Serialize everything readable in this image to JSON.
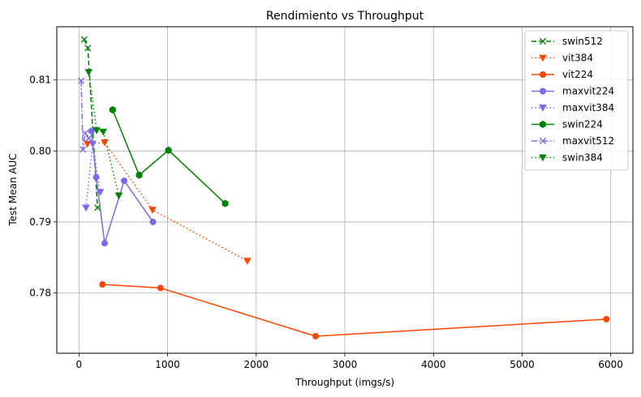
{
  "chart_data": {
    "type": "line",
    "title": "Rendimiento vs Throughput",
    "xlabel": "Throughput (imgs/s)",
    "ylabel": "Test Mean AUC",
    "xlim": [
      -250,
      6250
    ],
    "ylim": [
      0.7715,
      0.8175
    ],
    "xticks": [
      0,
      1000,
      2000,
      3000,
      4000,
      5000,
      6000
    ],
    "yticks": [
      0.78,
      0.79,
      0.8,
      0.81
    ],
    "ytick_labels": [
      "0.78",
      "0.79",
      "0.80",
      "0.81"
    ],
    "grid": true,
    "legend_position": "top-right",
    "series": [
      {
        "name": "swin512",
        "color": "#008000",
        "dash": "dashed",
        "marker": "x",
        "x": [
          60,
          100,
          210
        ],
        "y": [
          0.8157,
          0.8145,
          0.792
        ]
      },
      {
        "name": "vit384",
        "color": "#ff4500",
        "dash": "dotted",
        "marker": "triangle-down",
        "x": [
          95,
          290,
          830,
          1900
        ],
        "y": [
          0.801,
          0.8012,
          0.7917,
          0.7845
        ]
      },
      {
        "name": "vit224",
        "color": "#ff4500",
        "dash": "solid",
        "marker": "circle",
        "x": [
          265,
          920,
          2670,
          5950
        ],
        "y": [
          0.7812,
          0.7807,
          0.7739,
          0.7763
        ]
      },
      {
        "name": "maxvit224",
        "color": "#7b68ee",
        "dash": "solid",
        "marker": "circle",
        "x": [
          140,
          195,
          290,
          510,
          835
        ],
        "y": [
          0.8028,
          0.7963,
          0.787,
          0.7958,
          0.79
        ]
      },
      {
        "name": "maxvit384",
        "color": "#7b68ee",
        "dash": "dotted",
        "marker": "triangle-down",
        "x": [
          80,
          155,
          240
        ],
        "y": [
          0.792,
          0.801,
          0.7942
        ]
      },
      {
        "name": "swin224",
        "color": "#008000",
        "dash": "solid",
        "marker": "hexagon",
        "x": [
          380,
          680,
          1010,
          1650
        ],
        "y": [
          0.8058,
          0.7966,
          0.8001,
          0.7926
        ]
      },
      {
        "name": "maxvit512",
        "color": "#7b68ee",
        "dash": "dashdot",
        "marker": "x",
        "x": [
          25,
          45,
          70,
          110
        ],
        "y": [
          0.8099,
          0.8002,
          0.8025,
          0.8018
        ]
      },
      {
        "name": "swin384",
        "color": "#008000",
        "dash": "dotted",
        "marker": "triangle-down",
        "x": [
          110,
          200,
          275,
          450
        ],
        "y": [
          0.8111,
          0.8029,
          0.8027,
          0.7937
        ]
      }
    ]
  }
}
